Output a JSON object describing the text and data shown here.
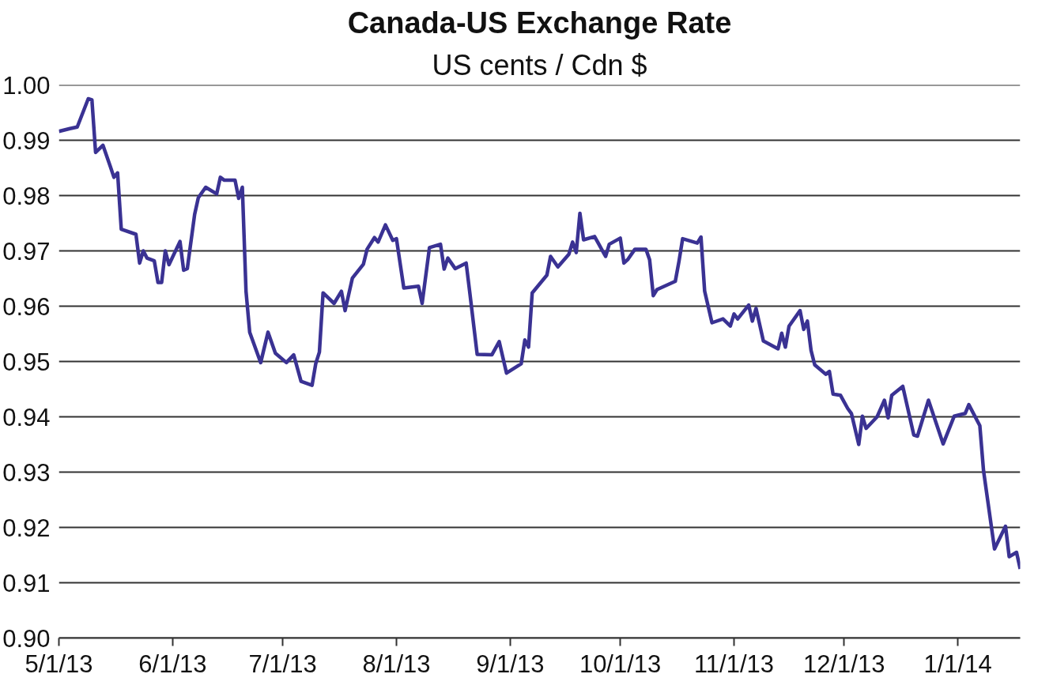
{
  "chart_data": {
    "type": "line",
    "title": "Canada-US Exchange Rate",
    "subtitle": "US cents / Cdn $",
    "x": [
      "2013-05-01",
      "2013-05-04",
      "2013-05-06",
      "2013-05-09",
      "2013-05-10",
      "2013-05-11",
      "2013-05-13",
      "2013-05-15",
      "2013-05-16",
      "2013-05-17",
      "2013-05-18",
      "2013-05-22",
      "2013-05-23",
      "2013-05-24",
      "2013-05-25",
      "2013-05-27",
      "2013-05-28",
      "2013-05-29",
      "2013-05-30",
      "2013-05-31",
      "2013-06-03",
      "2013-06-04",
      "2013-06-05",
      "2013-06-07",
      "2013-06-08",
      "2013-06-10",
      "2013-06-13",
      "2013-06-14",
      "2013-06-15",
      "2013-06-18",
      "2013-06-19",
      "2013-06-20",
      "2013-06-21",
      "2013-06-22",
      "2013-06-25",
      "2013-06-27",
      "2013-06-29",
      "2013-07-02",
      "2013-07-04",
      "2013-07-06",
      "2013-07-09",
      "2013-07-10",
      "2013-07-11",
      "2013-07-12",
      "2013-07-15",
      "2013-07-17",
      "2013-07-18",
      "2013-07-20",
      "2013-07-23",
      "2013-07-24",
      "2013-07-26",
      "2013-07-27",
      "2013-07-29",
      "2013-07-31",
      "2013-08-01",
      "2013-08-03",
      "2013-08-07",
      "2013-08-08",
      "2013-08-10",
      "2013-08-13",
      "2013-08-14",
      "2013-08-15",
      "2013-08-17",
      "2013-08-20",
      "2013-08-21",
      "2013-08-23",
      "2013-08-27",
      "2013-08-29",
      "2013-08-31",
      "2013-09-04",
      "2013-09-05",
      "2013-09-06",
      "2013-09-07",
      "2013-09-11",
      "2013-09-12",
      "2013-09-14",
      "2013-09-17",
      "2013-09-18",
      "2013-09-19",
      "2013-09-20",
      "2013-09-21",
      "2013-09-24",
      "2013-09-25",
      "2013-09-27",
      "2013-09-28",
      "2013-10-01",
      "2013-10-02",
      "2013-10-03",
      "2013-10-05",
      "2013-10-08",
      "2013-10-09",
      "2013-10-10",
      "2013-10-11",
      "2013-10-16",
      "2013-10-17",
      "2013-10-18",
      "2013-10-22",
      "2013-10-23",
      "2013-10-24",
      "2013-10-26",
      "2013-10-29",
      "2013-10-31",
      "2013-11-01",
      "2013-11-02",
      "2013-11-05",
      "2013-11-06",
      "2013-11-07",
      "2013-11-09",
      "2013-11-13",
      "2013-11-14",
      "2013-11-15",
      "2013-11-16",
      "2013-11-19",
      "2013-11-20",
      "2013-11-21",
      "2013-11-22",
      "2013-11-23",
      "2013-11-26",
      "2013-11-27",
      "2013-11-28",
      "2013-11-30",
      "2013-12-02",
      "2013-12-03",
      "2013-12-05",
      "2013-12-06",
      "2013-12-07",
      "2013-12-10",
      "2013-12-12",
      "2013-12-13",
      "2013-12-14",
      "2013-12-17",
      "2013-12-20",
      "2013-12-21",
      "2013-12-24",
      "2013-12-28",
      "2013-12-31",
      "2014-01-03",
      "2014-01-04",
      "2014-01-07",
      "2014-01-08",
      "2014-01-11",
      "2014-01-14",
      "2014-01-15",
      "2014-01-17",
      "2014-01-18"
    ],
    "series": [
      {
        "color": "#3a3293",
        "values": [
          0.9916,
          0.9921,
          0.9924,
          0.9975,
          0.9973,
          0.9878,
          0.9891,
          0.9853,
          0.9833,
          0.9841,
          0.9739,
          0.973,
          0.9678,
          0.97,
          0.9687,
          0.9682,
          0.9643,
          0.9643,
          0.97,
          0.9675,
          0.9717,
          0.9665,
          0.9668,
          0.9766,
          0.9796,
          0.9815,
          0.9803,
          0.9833,
          0.9828,
          0.9828,
          0.9795,
          0.9815,
          0.9627,
          0.9553,
          0.9498,
          0.9553,
          0.9515,
          0.9498,
          0.9512,
          0.9464,
          0.9457,
          0.9496,
          0.9517,
          0.9624,
          0.9605,
          0.9627,
          0.9592,
          0.9651,
          0.9676,
          0.9703,
          0.9724,
          0.9716,
          0.9747,
          0.9719,
          0.9722,
          0.9633,
          0.9636,
          0.9605,
          0.9706,
          0.9712,
          0.9667,
          0.9687,
          0.9668,
          0.9678,
          0.9624,
          0.9513,
          0.9512,
          0.9536,
          0.9479,
          0.9496,
          0.9539,
          0.9526,
          0.9624,
          0.9656,
          0.969,
          0.9671,
          0.9694,
          0.9716,
          0.9697,
          0.9768,
          0.972,
          0.9726,
          0.9714,
          0.969,
          0.9712,
          0.9723,
          0.9678,
          0.9684,
          0.9703,
          0.9703,
          0.9684,
          0.9619,
          0.963,
          0.9645,
          0.9681,
          0.9722,
          0.9714,
          0.9725,
          0.9627,
          0.957,
          0.9577,
          0.9564,
          0.9586,
          0.9577,
          0.9602,
          0.9573,
          0.9596,
          0.9537,
          0.9523,
          0.9551,
          0.9526,
          0.9564,
          0.9592,
          0.9558,
          0.9573,
          0.952,
          0.9494,
          0.9477,
          0.9482,
          0.9441,
          0.9439,
          0.9415,
          0.9406,
          0.935,
          0.9401,
          0.9379,
          0.94,
          0.943,
          0.9398,
          0.9439,
          0.9455,
          0.9367,
          0.9365,
          0.943,
          0.9351,
          0.9401,
          0.9406,
          0.9422,
          0.9384,
          0.9303,
          0.9161,
          0.9202,
          0.9147,
          0.9155,
          0.9125
        ]
      }
    ],
    "xlim": [
      "2013-05-01",
      "2014-01-18"
    ],
    "xticks": [
      {
        "value": "2013-05-01",
        "label": "5/1/13"
      },
      {
        "value": "2013-06-01",
        "label": "6/1/13"
      },
      {
        "value": "2013-07-01",
        "label": "7/1/13"
      },
      {
        "value": "2013-08-01",
        "label": "8/1/13"
      },
      {
        "value": "2013-09-01",
        "label": "9/1/13"
      },
      {
        "value": "2013-10-01",
        "label": "10/1/13"
      },
      {
        "value": "2013-11-01",
        "label": "11/1/13"
      },
      {
        "value": "2013-12-01",
        "label": "12/1/13"
      },
      {
        "value": "2014-01-01",
        "label": "1/1/14"
      }
    ],
    "ylim": [
      0.9,
      1.0
    ],
    "yticks": [
      {
        "value": 0.9,
        "label": "0.90"
      },
      0.91,
      0.92,
      0.93,
      0.94,
      0.95,
      0.96,
      0.97,
      0.98,
      0.99,
      {
        "value": 1.0,
        "label": "1.00"
      }
    ],
    "grid": "y",
    "marker": "none",
    "line_style": "solid"
  }
}
